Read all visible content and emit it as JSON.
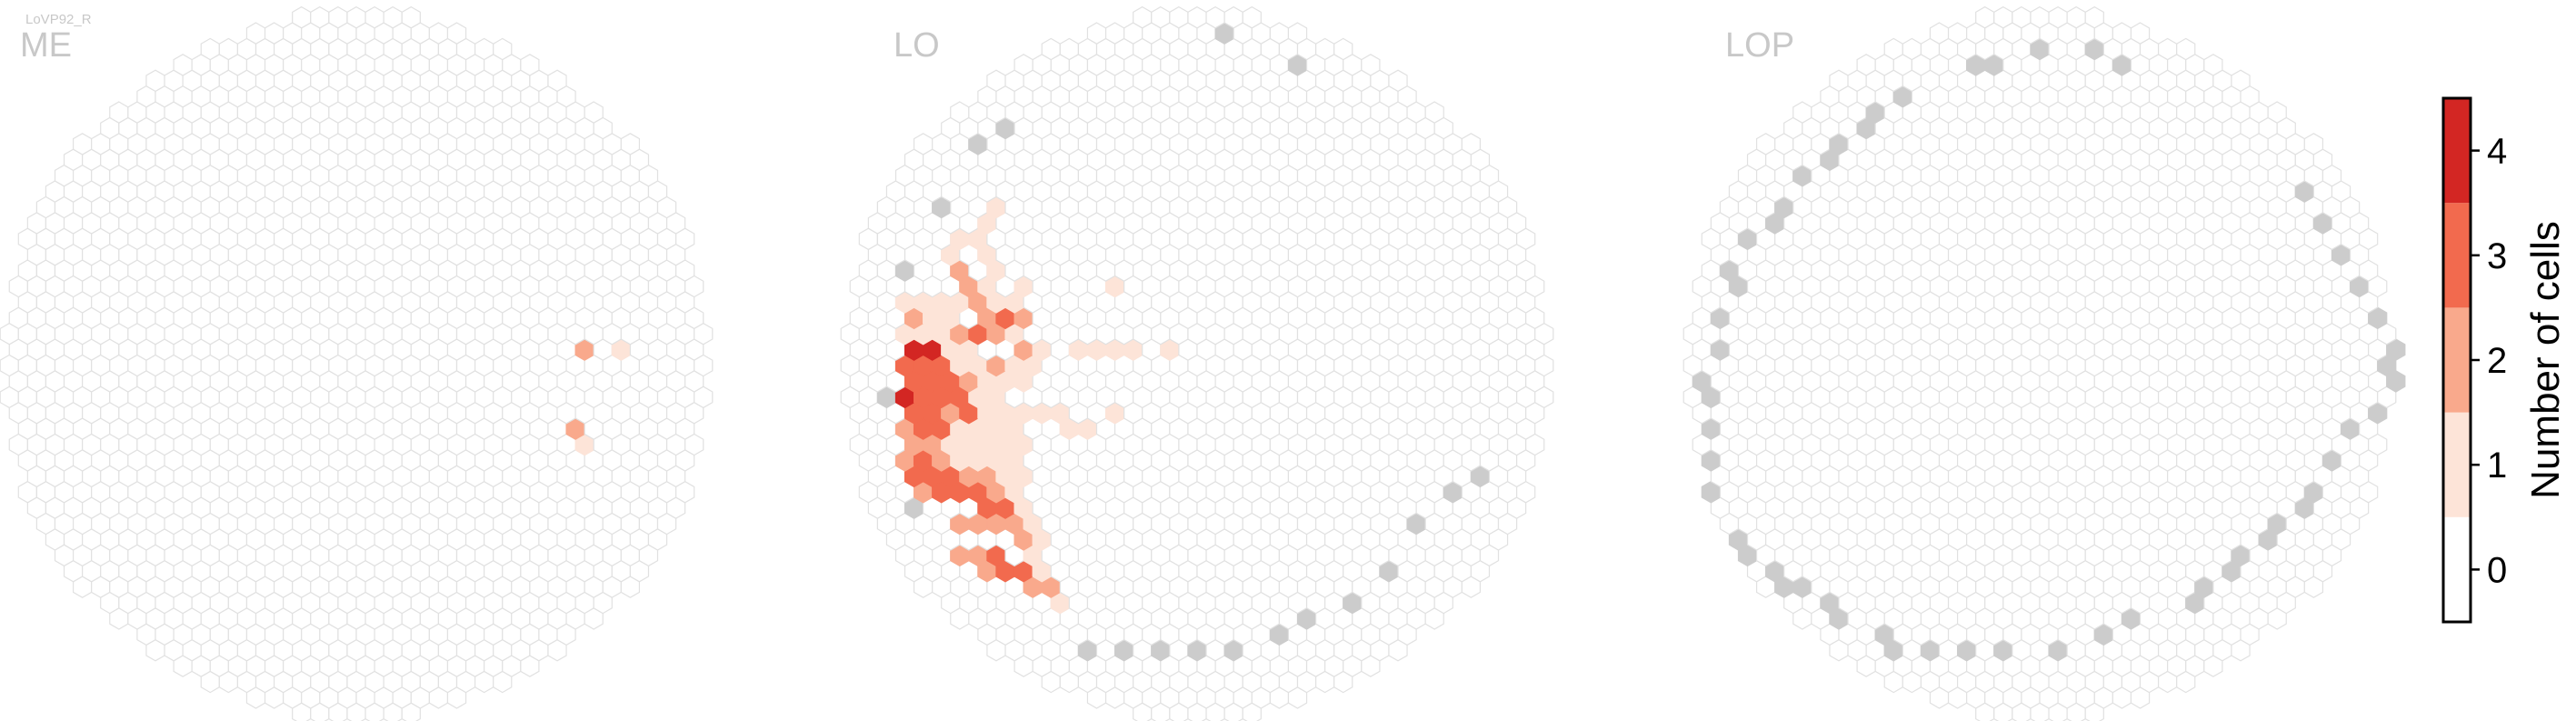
{
  "cell_type_label": "LoVP92_R",
  "colors": {
    "empty_fill": "#ffffff",
    "empty_stroke": "#e1e1e1",
    "outside_fill": "#cccccc",
    "level_1": "#fde4d8",
    "level_2": "#f9a98c",
    "level_3": "#f26a4e",
    "level_4": "#d32623"
  },
  "colorbar": {
    "label": "Number of cells",
    "ticks": [
      "0",
      "1",
      "2",
      "3",
      "4"
    ],
    "range": [
      -0.5,
      4.5
    ]
  },
  "chart_data": [
    {
      "type": "heatmap",
      "title": "ME",
      "lattice": "hexagonal",
      "outside_columns": [],
      "columns": [
        {
          "u": 12,
          "v": 1,
          "count": 2
        },
        {
          "u": 14,
          "v": 1,
          "count": 1
        },
        {
          "u": 12,
          "v": -4,
          "count": 2
        },
        {
          "u": 12,
          "v": -5,
          "count": 1
        }
      ]
    },
    {
      "type": "heatmap",
      "title": "LO",
      "lattice": "hexagonal",
      "outside_columns": [
        {
          "u": -17,
          "v": -2
        },
        {
          "u": -16,
          "v": 6
        },
        {
          "u": -14,
          "v": 10
        },
        {
          "u": -12,
          "v": 14
        },
        {
          "u": -11,
          "v": 15
        },
        {
          "u": -16,
          "v": -9
        },
        {
          "u": -6,
          "v": -18
        },
        {
          "u": -4,
          "v": -18
        },
        {
          "u": -2,
          "v": -18
        },
        {
          "u": 0,
          "v": -18
        },
        {
          "u": 2,
          "v": -18
        },
        {
          "u": 4,
          "v": -17
        },
        {
          "u": 6,
          "v": -16
        },
        {
          "u": 8,
          "v": -15
        },
        {
          "u": 10,
          "v": -13
        },
        {
          "u": 12,
          "v": -10
        },
        {
          "u": 14,
          "v": -8
        },
        {
          "u": 15,
          "v": -7
        },
        {
          "u": 1,
          "v": 21
        },
        {
          "u": 5,
          "v": 19
        }
      ],
      "columns": [
        {
          "u": -16,
          "v": 1,
          "count": 4
        },
        {
          "u": -15,
          "v": 1,
          "count": 4
        },
        {
          "u": -16,
          "v": 0,
          "count": 3
        },
        {
          "u": -15,
          "v": 0,
          "count": 3
        },
        {
          "u": -14,
          "v": 0,
          "count": 3
        },
        {
          "u": -16,
          "v": -1,
          "count": 3
        },
        {
          "u": -15,
          "v": -1,
          "count": 3
        },
        {
          "u": -14,
          "v": -1,
          "count": 3
        },
        {
          "u": -13,
          "v": -1,
          "count": 2
        },
        {
          "u": -16,
          "v": -2,
          "count": 4
        },
        {
          "u": -15,
          "v": -2,
          "count": 3
        },
        {
          "u": -14,
          "v": -2,
          "count": 3
        },
        {
          "u": -13,
          "v": -2,
          "count": 3
        },
        {
          "u": -16,
          "v": -3,
          "count": 3
        },
        {
          "u": -15,
          "v": -3,
          "count": 3
        },
        {
          "u": -14,
          "v": -3,
          "count": 2
        },
        {
          "u": -13,
          "v": -3,
          "count": 3
        },
        {
          "u": -16,
          "v": -4,
          "count": 2
        },
        {
          "u": -15,
          "v": -4,
          "count": 3
        },
        {
          "u": -14,
          "v": -4,
          "count": 3
        },
        {
          "u": -16,
          "v": -5,
          "count": 2
        },
        {
          "u": -15,
          "v": -5,
          "count": 2
        },
        {
          "u": -16,
          "v": -6,
          "count": 2
        },
        {
          "u": -15,
          "v": -6,
          "count": 3
        },
        {
          "u": -14,
          "v": -6,
          "count": 2
        },
        {
          "u": -16,
          "v": -7,
          "count": 3
        },
        {
          "u": -15,
          "v": -7,
          "count": 3
        },
        {
          "u": -14,
          "v": -7,
          "count": 3
        },
        {
          "u": -13,
          "v": -7,
          "count": 2
        },
        {
          "u": -12,
          "v": -7,
          "count": 2
        },
        {
          "u": -15,
          "v": -8,
          "count": 2
        },
        {
          "u": -14,
          "v": -8,
          "count": 3
        },
        {
          "u": -13,
          "v": -8,
          "count": 3
        },
        {
          "u": -12,
          "v": -8,
          "count": 3
        },
        {
          "u": -11,
          "v": -8,
          "count": 2
        },
        {
          "u": -12,
          "v": -9,
          "count": 3
        },
        {
          "u": -11,
          "v": -9,
          "count": 3
        },
        {
          "u": -13,
          "v": -10,
          "count": 2
        },
        {
          "u": -12,
          "v": -10,
          "count": 2
        },
        {
          "u": -11,
          "v": -10,
          "count": 2
        },
        {
          "u": -10,
          "v": -10,
          "count": 2
        },
        {
          "u": -13,
          "v": -12,
          "count": 2
        },
        {
          "u": -12,
          "v": -12,
          "count": 2
        },
        {
          "u": -11,
          "v": -12,
          "count": 3
        },
        {
          "u": -12,
          "v": -13,
          "count": 2
        },
        {
          "u": -11,
          "v": -13,
          "count": 3
        },
        {
          "u": -10,
          "v": -13,
          "count": 3
        },
        {
          "u": -9,
          "v": -14,
          "count": 2
        },
        {
          "u": -8,
          "v": -14,
          "count": 2
        },
        {
          "u": -10,
          "v": -11,
          "count": 2
        },
        {
          "u": -13,
          "v": 2,
          "count": 2
        },
        {
          "u": -12,
          "v": 2,
          "count": 3
        },
        {
          "u": -11,
          "v": 2,
          "count": 2
        },
        {
          "u": -12,
          "v": 3,
          "count": 2
        },
        {
          "u": -11,
          "v": 3,
          "count": 3
        },
        {
          "u": -10,
          "v": 3,
          "count": 2
        },
        {
          "u": -13,
          "v": 5,
          "count": 2
        },
        {
          "u": -12,
          "v": 4,
          "count": 2
        },
        {
          "u": -10,
          "v": 1,
          "count": 2
        },
        {
          "u": -11,
          "v": 0,
          "count": 2
        },
        {
          "u": -16,
          "v": 3,
          "count": 2
        },
        {
          "u": -14,
          "v": 4,
          "count": 1
        },
        {
          "u": -13,
          "v": 6,
          "count": 2
        },
        {
          "u": -16,
          "v": 4,
          "count": 1
        },
        {
          "u": -15,
          "v": 4,
          "count": 1
        },
        {
          "u": -14,
          "v": 3,
          "count": 1
        },
        {
          "u": -13,
          "v": 4,
          "count": 1
        },
        {
          "u": -12,
          "v": 5,
          "count": 1
        },
        {
          "u": -11,
          "v": 4,
          "count": 1
        },
        {
          "u": -10,
          "v": 4,
          "count": 1
        },
        {
          "u": -10,
          "v": 2,
          "count": 1
        },
        {
          "u": -9,
          "v": 1,
          "count": 1
        },
        {
          "u": -9,
          "v": 0,
          "count": 1
        },
        {
          "u": -10,
          "v": 0,
          "count": 1
        },
        {
          "u": -10,
          "v": -1,
          "count": 1
        },
        {
          "u": -11,
          "v": -1,
          "count": 1
        },
        {
          "u": -12,
          "v": -1,
          "count": 1
        },
        {
          "u": -12,
          "v": 0,
          "count": 1
        },
        {
          "u": -13,
          "v": 0,
          "count": 1
        },
        {
          "u": -13,
          "v": 1,
          "count": 1
        },
        {
          "u": -14,
          "v": 1,
          "count": 1
        },
        {
          "u": -14,
          "v": 2,
          "count": 1
        },
        {
          "u": -15,
          "v": 2,
          "count": 1
        },
        {
          "u": -15,
          "v": 3,
          "count": 1
        },
        {
          "u": -16,
          "v": 2,
          "count": 1
        },
        {
          "u": -13,
          "v": -4,
          "count": 1
        },
        {
          "u": -12,
          "v": -4,
          "count": 1
        },
        {
          "u": -11,
          "v": -4,
          "count": 1
        },
        {
          "u": -10,
          "v": -4,
          "count": 1
        },
        {
          "u": -12,
          "v": -3,
          "count": 1
        },
        {
          "u": -11,
          "v": -3,
          "count": 1
        },
        {
          "u": -10,
          "v": -3,
          "count": 1
        },
        {
          "u": -9,
          "v": -3,
          "count": 1
        },
        {
          "u": -8,
          "v": -3,
          "count": 1
        },
        {
          "u": -12,
          "v": -2,
          "count": 1
        },
        {
          "u": -11,
          "v": -2,
          "count": 1
        },
        {
          "u": -13,
          "v": -5,
          "count": 1
        },
        {
          "u": -12,
          "v": -5,
          "count": 1
        },
        {
          "u": -11,
          "v": -5,
          "count": 1
        },
        {
          "u": -10,
          "v": -5,
          "count": 1
        },
        {
          "u": -14,
          "v": -5,
          "count": 1
        },
        {
          "u": -13,
          "v": -6,
          "count": 1
        },
        {
          "u": -12,
          "v": -6,
          "count": 1
        },
        {
          "u": -11,
          "v": -6,
          "count": 1
        },
        {
          "u": -10,
          "v": -6,
          "count": 1
        },
        {
          "u": -11,
          "v": -7,
          "count": 1
        },
        {
          "u": -10,
          "v": -7,
          "count": 1
        },
        {
          "u": -10,
          "v": -8,
          "count": 1
        },
        {
          "u": -10,
          "v": -9,
          "count": 1
        },
        {
          "u": -9,
          "v": -10,
          "count": 1
        },
        {
          "u": -9,
          "v": -11,
          "count": 1
        },
        {
          "u": -9,
          "v": -12,
          "count": 1
        },
        {
          "u": -9,
          "v": -13,
          "count": 1
        },
        {
          "u": -8,
          "v": -15,
          "count": 1
        },
        {
          "u": -7,
          "v": -4,
          "count": 1
        },
        {
          "u": -6,
          "v": -4,
          "count": 1
        },
        {
          "u": -5,
          "v": -3,
          "count": 1
        },
        {
          "u": -7,
          "v": 1,
          "count": 1
        },
        {
          "u": -6,
          "v": 1,
          "count": 1
        },
        {
          "u": -5,
          "v": 1,
          "count": 1
        },
        {
          "u": -4,
          "v": 1,
          "count": 1
        },
        {
          "u": -2,
          "v": 1,
          "count": 1
        },
        {
          "u": -5,
          "v": 5,
          "count": 1
        },
        {
          "u": -13,
          "v": 8,
          "count": 1
        },
        {
          "u": -12,
          "v": 7,
          "count": 1
        },
        {
          "u": -11,
          "v": 6,
          "count": 1
        },
        {
          "u": -10,
          "v": 5,
          "count": 1
        },
        {
          "u": -14,
          "v": 7,
          "count": 1
        },
        {
          "u": -12,
          "v": 9,
          "count": 1
        },
        {
          "u": -11,
          "v": 10,
          "count": 1
        },
        {
          "u": -12,
          "v": 8,
          "count": 1
        }
      ]
    },
    {
      "type": "heatmap",
      "title": "LOP",
      "lattice": "hexagonal",
      "outside_columns": [
        {
          "u": -4,
          "v": 19
        },
        {
          "u": -3,
          "v": 19
        },
        {
          "u": 0,
          "v": 20
        },
        {
          "u": 3,
          "v": 20
        },
        {
          "u": 4,
          "v": 19
        },
        {
          "u": -8,
          "v": 17
        },
        {
          "u": -9,
          "v": 16
        },
        {
          "u": -10,
          "v": 15
        },
        {
          "u": -11,
          "v": 14
        },
        {
          "u": -12,
          "v": 13
        },
        {
          "u": -13,
          "v": 12
        },
        {
          "u": -14,
          "v": 10
        },
        {
          "u": -15,
          "v": 9
        },
        {
          "u": -16,
          "v": 8
        },
        {
          "u": -17,
          "v": 6
        },
        {
          "u": -17,
          "v": 5
        },
        {
          "u": -18,
          "v": 3
        },
        {
          "u": -18,
          "v": 1
        },
        {
          "u": -19,
          "v": -1
        },
        {
          "u": -18,
          "v": -2
        },
        {
          "u": -18,
          "v": -4
        },
        {
          "u": -18,
          "v": -6
        },
        {
          "u": -18,
          "v": -8
        },
        {
          "u": -17,
          "v": -11
        },
        {
          "u": -16,
          "v": -12
        },
        {
          "u": -15,
          "v": -13
        },
        {
          "u": -14,
          "v": -14
        },
        {
          "u": -13,
          "v": -14
        },
        {
          "u": -12,
          "v": -15
        },
        {
          "u": -11,
          "v": -16
        },
        {
          "u": -9,
          "v": -17
        },
        {
          "u": -8,
          "v": -18
        },
        {
          "u": -6,
          "v": -18
        },
        {
          "u": -4,
          "v": -18
        },
        {
          "u": -2,
          "v": -18
        },
        {
          "u": 1,
          "v": -18
        },
        {
          "u": 3,
          "v": -17
        },
        {
          "u": 5,
          "v": -16
        },
        {
          "u": 8,
          "v": -15
        },
        {
          "u": 9,
          "v": -14
        },
        {
          "u": 10,
          "v": -13
        },
        {
          "u": 11,
          "v": -12
        },
        {
          "u": 12,
          "v": -11
        },
        {
          "u": 13,
          "v": -10
        },
        {
          "u": 14,
          "v": -9
        },
        {
          "u": 15,
          "v": -8
        },
        {
          "u": 16,
          "v": -6
        },
        {
          "u": 17,
          "v": -4
        },
        {
          "u": 18,
          "v": -3
        },
        {
          "u": 19,
          "v": -1
        },
        {
          "u": 19,
          "v": 0
        },
        {
          "u": 19,
          "v": 1
        },
        {
          "u": 18,
          "v": 3
        },
        {
          "u": 17,
          "v": 5
        },
        {
          "u": 16,
          "v": 7
        },
        {
          "u": 15,
          "v": 9
        },
        {
          "u": 14,
          "v": 11
        }
      ],
      "columns": []
    }
  ]
}
